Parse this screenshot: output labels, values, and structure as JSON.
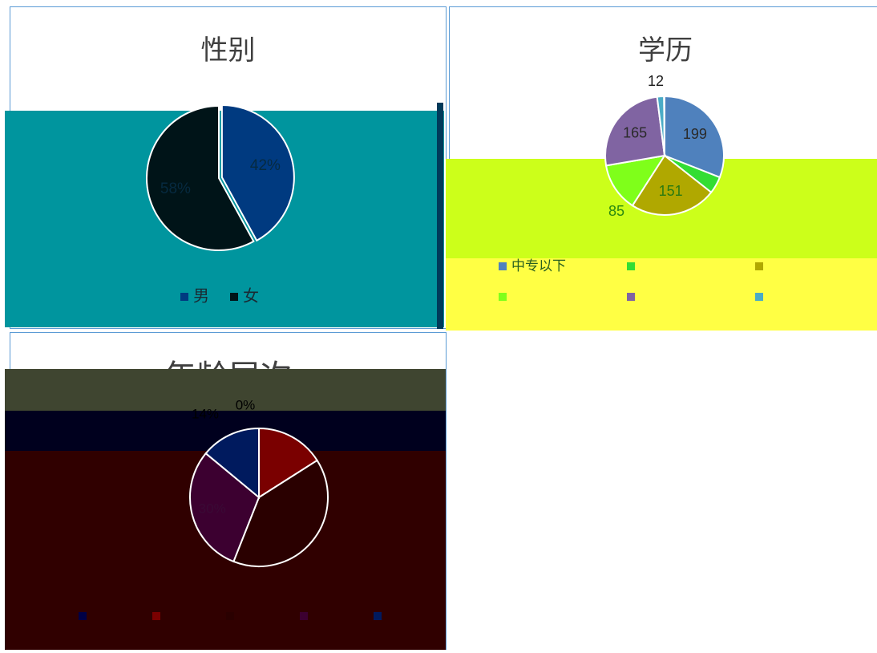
{
  "chart_data": [
    {
      "type": "pie",
      "title": "性别",
      "categories": [
        "男",
        "女"
      ],
      "values": [
        42,
        58
      ],
      "value_labels": [
        "42%",
        "58%"
      ],
      "colors": [
        "#003a80",
        "#001418"
      ],
      "legend_position": "bottom"
    },
    {
      "type": "pie",
      "title": "学历",
      "categories": [
        "",
        "",
        "",
        "",
        "",
        "",
        ""
      ],
      "values": [
        199,
        30,
        151,
        85,
        165,
        12,
        1
      ],
      "value_labels": [
        "199",
        "",
        "151",
        "85",
        "165",
        "12",
        ""
      ],
      "colors": [
        "#4f81bd",
        "#33dd33",
        "#b0a800",
        "#7fff1a",
        "#8064a2",
        "#4bacc6",
        "#ffffff"
      ],
      "legend_position": "bottom",
      "legend_labels": [
        "中专以下"
      ]
    },
    {
      "type": "pie",
      "title": "年龄层次",
      "categories": [
        "",
        "",
        "",
        "",
        ""
      ],
      "values": [
        0,
        16,
        40,
        30,
        14
      ],
      "value_labels": [
        "0%",
        "",
        "",
        "30%",
        "14%"
      ],
      "colors": [
        "#000045",
        "#7a0000",
        "#2a0000",
        "#3c0030",
        "#001a5e"
      ],
      "legend_position": "bottom"
    }
  ]
}
